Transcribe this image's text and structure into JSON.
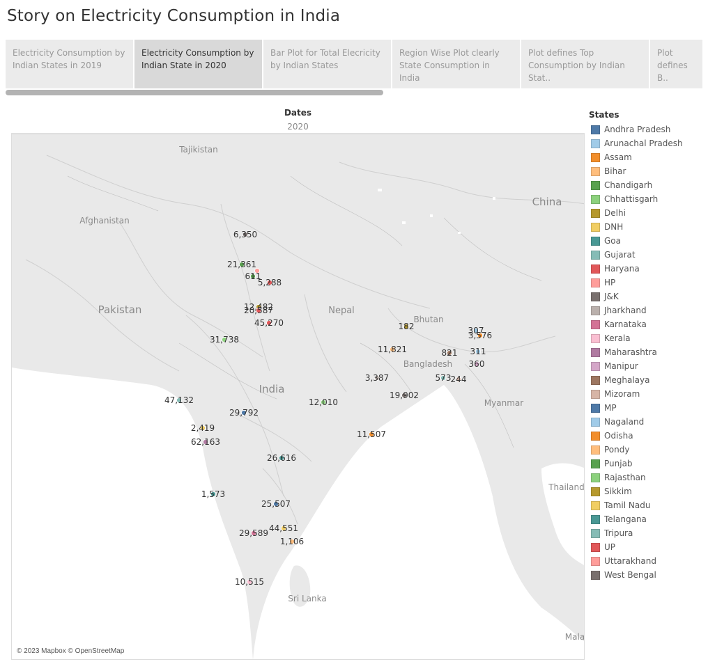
{
  "story": {
    "title": "Story on Electricity Consumption in India"
  },
  "tabs": [
    {
      "label": "Electricity Consumption by\nIndian States in 2019",
      "active": false
    },
    {
      "label": "Electricity Consumption by\nIndian State in 2020",
      "active": true
    },
    {
      "label": "Bar Plot for Total Elecricity\n by  Indian States",
      "active": false
    },
    {
      "label": "Region Wise Plot clearly\nState Consumption in India",
      "active": false
    },
    {
      "label": "Plot defines Top\nConsumption by Indian Stat..",
      "active": false
    },
    {
      "label": "Plot\ndefines B..",
      "active": false
    }
  ],
  "header": {
    "column_title": "Dates",
    "year": "2020"
  },
  "map": {
    "attribution": "© 2023 Mapbox © OpenStreetMap",
    "region_labels": [
      "Tajikistan",
      "Afghanistan",
      "China",
      "Pakistan",
      "Nepal",
      "Bhutan",
      "Bangladesh",
      "India",
      "Myanmar",
      "Thailand",
      "Sri Lanka",
      "Mala"
    ],
    "points": [
      {
        "state": "J&K",
        "value": "6,350"
      },
      {
        "state": "Punjab",
        "value": "21,361"
      },
      {
        "state": "Uttarakhand",
        "value": ""
      },
      {
        "state": "Chandigarh",
        "value": "611"
      },
      {
        "state": "Haryana",
        "value": "5,288"
      },
      {
        "state": "Delhi",
        "value": "12,482"
      },
      {
        "state": "Haryana",
        "value": "20,587"
      },
      {
        "state": "UP",
        "value": "45,270"
      },
      {
        "state": "Rajasthan",
        "value": "31,738"
      },
      {
        "state": "Sikkim",
        "value": "182"
      },
      {
        "state": "Arunachal Pradesh",
        "value": "307"
      },
      {
        "state": "Assam",
        "value": "3,576"
      },
      {
        "state": "Bihar",
        "value": "11,821"
      },
      {
        "state": "Meghalaya",
        "value": "821"
      },
      {
        "state": "Nagaland",
        "value": "311"
      },
      {
        "state": "Manipur",
        "value": "360"
      },
      {
        "state": "Jharkhand",
        "value": "3,387"
      },
      {
        "state": "Tripura",
        "value": "573"
      },
      {
        "state": "Mizoram",
        "value": "244"
      },
      {
        "state": "West Bengal",
        "value": "19,902"
      },
      {
        "state": "Gujarat",
        "value": "47,132"
      },
      {
        "state": "Chhattisgarh",
        "value": "12,010"
      },
      {
        "state": "MP",
        "value": "29,792"
      },
      {
        "state": "DNH",
        "value": "2,419"
      },
      {
        "state": "Maharashtra",
        "value": "62,163"
      },
      {
        "state": "Odisha",
        "value": "11,507"
      },
      {
        "state": "Telangana",
        "value": "26,616"
      },
      {
        "state": "Goa",
        "value": "1,573"
      },
      {
        "state": "Andhra Pradesh",
        "value": "25,507"
      },
      {
        "state": "Tamil Nadu",
        "value": "44,551"
      },
      {
        "state": "Karnataka",
        "value": "29,589"
      },
      {
        "state": "Pondy",
        "value": "1,106"
      },
      {
        "state": "Kerala",
        "value": "10,515"
      }
    ]
  },
  "legend": {
    "title": "States",
    "items": [
      {
        "label": "Andhra Pradesh",
        "color": "#4e79a7"
      },
      {
        "label": "Arunachal Pradesh",
        "color": "#a0cbe8"
      },
      {
        "label": "Assam",
        "color": "#f28e2b"
      },
      {
        "label": "Bihar",
        "color": "#ffbe7d"
      },
      {
        "label": "Chandigarh",
        "color": "#59a14f"
      },
      {
        "label": "Chhattisgarh",
        "color": "#8cd17d"
      },
      {
        "label": "Delhi",
        "color": "#b6992d"
      },
      {
        "label": "DNH",
        "color": "#f1ce63"
      },
      {
        "label": "Goa",
        "color": "#499894"
      },
      {
        "label": "Gujarat",
        "color": "#86bcb6"
      },
      {
        "label": "Haryana",
        "color": "#e15759"
      },
      {
        "label": "HP",
        "color": "#ff9d9a"
      },
      {
        "label": "J&K",
        "color": "#79706e"
      },
      {
        "label": "Jharkhand",
        "color": "#bab0ac"
      },
      {
        "label": "Karnataka",
        "color": "#d37295"
      },
      {
        "label": "Kerala",
        "color": "#fabfd2"
      },
      {
        "label": "Maharashtra",
        "color": "#b07aa1"
      },
      {
        "label": "Manipur",
        "color": "#d4a6c8"
      },
      {
        "label": "Meghalaya",
        "color": "#9d7660"
      },
      {
        "label": "Mizoram",
        "color": "#d7b5a6"
      },
      {
        "label": "MP",
        "color": "#4e79a7"
      },
      {
        "label": "Nagaland",
        "color": "#a0cbe8"
      },
      {
        "label": "Odisha",
        "color": "#f28e2b"
      },
      {
        "label": "Pondy",
        "color": "#ffbe7d"
      },
      {
        "label": "Punjab",
        "color": "#59a14f"
      },
      {
        "label": "Rajasthan",
        "color": "#8cd17d"
      },
      {
        "label": "Sikkim",
        "color": "#b6992d"
      },
      {
        "label": "Tamil Nadu",
        "color": "#f1ce63"
      },
      {
        "label": "Telangana",
        "color": "#499894"
      },
      {
        "label": "Tripura",
        "color": "#86bcb6"
      },
      {
        "label": "UP",
        "color": "#e15759"
      },
      {
        "label": "Uttarakhand",
        "color": "#ff9d9a"
      },
      {
        "label": "West Bengal",
        "color": "#79706e"
      }
    ]
  }
}
